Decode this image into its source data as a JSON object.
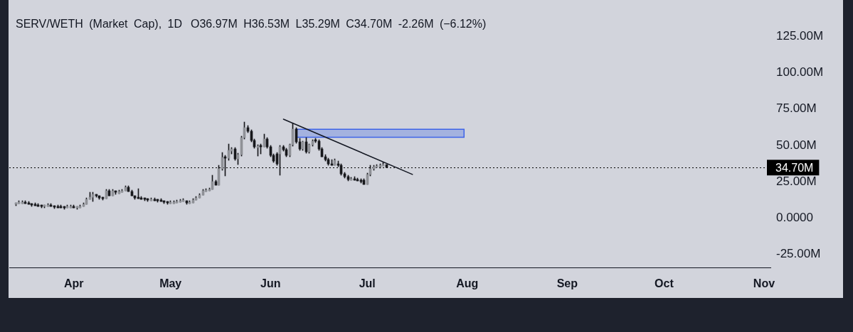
{
  "chart_data": {
    "type": "candlestick",
    "title": "SERV/WETH (Market Cap), 1D",
    "subtitle": "O36.97M H36.53M L35.29M C34.70M -2.26M (−6.12%)",
    "xlim": [
      "--03-12",
      "--11-03"
    ],
    "xticks": [
      {
        "value": "--04-01",
        "label": "Apr"
      },
      {
        "value": "--05-01",
        "label": "May"
      },
      {
        "value": "--06-01",
        "label": "Jun"
      },
      {
        "value": "--07-01",
        "label": "Jul"
      },
      {
        "value": "--08-01",
        "label": "Aug"
      },
      {
        "value": "--09-01",
        "label": "Sep"
      },
      {
        "value": "--10-01",
        "label": "Oct"
      },
      {
        "value": "--11-01",
        "label": "Nov"
      }
    ],
    "ylim": [
      -34,
      150
    ],
    "yticks": [
      {
        "value": -25,
        "label": "-25.00M"
      },
      {
        "value": 0,
        "label": "0.0000"
      },
      {
        "value": 25,
        "label": "25.00M"
      },
      {
        "value": 50,
        "label": "50.00M"
      },
      {
        "value": 75,
        "label": "75.00M"
      },
      {
        "value": 100,
        "label": "100.00M"
      },
      {
        "value": 125,
        "label": "125.00M"
      }
    ],
    "ref_lines": [
      {
        "axis": "y",
        "value": 34.7,
        "label": "34.70M",
        "color": "#000000",
        "line_style": "dotted"
      }
    ],
    "series": [
      {
        "color": "#17181c",
        "x": [
          "--03-14",
          "--03-15",
          "--03-16",
          "--03-17",
          "--03-18",
          "--03-19",
          "--03-20",
          "--03-21",
          "--03-22",
          "--03-23",
          "--03-24",
          "--03-25",
          "--03-26",
          "--03-27",
          "--03-28",
          "--03-29",
          "--03-30",
          "--03-31",
          "--04-01",
          "--04-02",
          "--04-03",
          "--04-04",
          "--04-05",
          "--04-06",
          "--04-07",
          "--04-08",
          "--04-09",
          "--04-10",
          "--04-11",
          "--04-12",
          "--04-13",
          "--04-14",
          "--04-15",
          "--04-16",
          "--04-17",
          "--04-18",
          "--04-19",
          "--04-20",
          "--04-21",
          "--04-22",
          "--04-23",
          "--04-24",
          "--04-25",
          "--04-26",
          "--04-27",
          "--04-28",
          "--04-29",
          "--04-30",
          "--05-01",
          "--05-02",
          "--05-03",
          "--05-04",
          "--05-05",
          "--05-06",
          "--05-07",
          "--05-08",
          "--05-09",
          "--05-10",
          "--05-11",
          "--05-12",
          "--05-13",
          "--05-14",
          "--05-15",
          "--05-16",
          "--05-17",
          "--05-18",
          "--05-19",
          "--05-20",
          "--05-21",
          "--05-22",
          "--05-23",
          "--05-24",
          "--05-25",
          "--05-26",
          "--05-27",
          "--05-28",
          "--05-29",
          "--05-30",
          "--05-31",
          "--06-01",
          "--06-02",
          "--06-03",
          "--06-04",
          "--06-05",
          "--06-06",
          "--06-07",
          "--06-08",
          "--06-09",
          "--06-10",
          "--06-11",
          "--06-12",
          "--06-13",
          "--06-14",
          "--06-15",
          "--06-16",
          "--06-17",
          "--06-18",
          "--06-19",
          "--06-20",
          "--06-21",
          "--06-22",
          "--06-23",
          "--06-24",
          "--06-25",
          "--06-26",
          "--06-27",
          "--06-28",
          "--06-29",
          "--06-30",
          "--07-01",
          "--07-02",
          "--07-03",
          "--07-04",
          "--07-05",
          "--07-06",
          "--07-07"
        ],
        "ohlc": [
          [
            9.5,
            10.5,
            8.5,
            10.5
          ],
          [
            10.0,
            12.0,
            10.0,
            11.0
          ],
          [
            10.0,
            12.0,
            10.0,
            11.0
          ],
          [
            11.0,
            12.0,
            10.0,
            10.0
          ],
          [
            10.5,
            11.5,
            9.5,
            9.5
          ],
          [
            10.0,
            10.0,
            8.0,
            9.0
          ],
          [
            9.5,
            10.5,
            8.5,
            8.5
          ],
          [
            9.0,
            10.0,
            8.0,
            8.0
          ],
          [
            9.0,
            9.0,
            7.0,
            8.0
          ],
          [
            8.0,
            9.0,
            7.0,
            9.0
          ],
          [
            8.0,
            10.0,
            8.0,
            9.0
          ],
          [
            9.0,
            10.0,
            8.0,
            8.0
          ],
          [
            8.5,
            8.5,
            6.5,
            7.5
          ],
          [
            8.0,
            9.0,
            7.0,
            7.0
          ],
          [
            8.0,
            9.0,
            7.0,
            7.0
          ],
          [
            8.0,
            8.0,
            6.0,
            7.0
          ],
          [
            7.0,
            9.0,
            7.0,
            8.0
          ],
          [
            7.0,
            9.0,
            7.0,
            8.0
          ],
          [
            8.0,
            9.0,
            7.0,
            7.0
          ],
          [
            7.0,
            8.0,
            6.0,
            8.0
          ],
          [
            7.0,
            9.0,
            7.0,
            8.0
          ],
          [
            8.0,
            10.5,
            8.0,
            9.5
          ],
          [
            9.5,
            14.0,
            9.5,
            13.0
          ],
          [
            13.0,
            17.5,
            13.0,
            14.5
          ],
          [
            14.5,
            17.5,
            11.5,
            16.5
          ],
          [
            16.5,
            16.5,
            14.5,
            15.5
          ],
          [
            15.5,
            15.5,
            13.0,
            14.0
          ],
          [
            14.5,
            14.5,
            12.5,
            13.5
          ],
          [
            13.5,
            19.5,
            13.5,
            18.5
          ],
          [
            18.5,
            19.5,
            15.5,
            15.5
          ],
          [
            15.5,
            19.5,
            15.5,
            18.5
          ],
          [
            18.5,
            18.5,
            16.5,
            17.5
          ],
          [
            17.0,
            19.0,
            17.0,
            18.0
          ],
          [
            17.5,
            19.5,
            17.5,
            18.5
          ],
          [
            18.5,
            22.0,
            18.5,
            21.0
          ],
          [
            21.0,
            22.0,
            18.0,
            18.0
          ],
          [
            18.0,
            19.0,
            15.5,
            15.5
          ],
          [
            15.5,
            15.5,
            13.0,
            14.0
          ],
          [
            14.5,
            20.0,
            13.5,
            13.5
          ],
          [
            14.0,
            15.0,
            13.0,
            13.0
          ],
          [
            14.0,
            14.0,
            12.0,
            13.0
          ],
          [
            13.5,
            13.5,
            11.5,
            12.5
          ],
          [
            12.0,
            14.0,
            12.0,
            13.0
          ],
          [
            13.0,
            14.0,
            12.0,
            12.0
          ],
          [
            13.0,
            13.0,
            11.0,
            12.0
          ],
          [
            12.5,
            13.5,
            11.5,
            11.5
          ],
          [
            12.0,
            12.0,
            10.0,
            11.0
          ],
          [
            11.5,
            11.5,
            9.5,
            10.5
          ],
          [
            10.0,
            12.0,
            10.0,
            11.0
          ],
          [
            10.0,
            12.0,
            10.0,
            11.0
          ],
          [
            10.5,
            12.5,
            10.5,
            11.5
          ],
          [
            11.0,
            13.0,
            11.0,
            12.0
          ],
          [
            11.5,
            13.5,
            11.5,
            12.5
          ],
          [
            12.0,
            12.0,
            9.5,
            10.5
          ],
          [
            10.0,
            12.0,
            10.0,
            11.0
          ],
          [
            10.5,
            13.5,
            10.5,
            12.5
          ],
          [
            12.5,
            15.0,
            12.5,
            14.0
          ],
          [
            14.0,
            17.0,
            14.0,
            16.0
          ],
          [
            16.0,
            19.5,
            16.0,
            18.5
          ],
          [
            18.0,
            20.0,
            18.0,
            19.0
          ],
          [
            18.5,
            20.5,
            18.5,
            19.5
          ],
          [
            19.5,
            29.5,
            19.5,
            25.0
          ],
          [
            25.0,
            26.0,
            22.5,
            22.5
          ],
          [
            22.5,
            36.5,
            22.5,
            34.0
          ],
          [
            34.0,
            45.0,
            33.0,
            41.5
          ],
          [
            42.0,
            43.0,
            29.0,
            41.0
          ],
          [
            41.0,
            51.0,
            39.5,
            46.5
          ],
          [
            46.0,
            48.5,
            44.0,
            47.5
          ],
          [
            47.5,
            48.5,
            39.5,
            40.5
          ],
          [
            40.5,
            44.5,
            37.0,
            43.5
          ],
          [
            43.5,
            56.5,
            42.5,
            55.5
          ],
          [
            55.5,
            66.0,
            54.5,
            62.0
          ],
          [
            62.0,
            63.5,
            58.5,
            59.5
          ],
          [
            59.5,
            60.5,
            52.5,
            53.5
          ],
          [
            53.5,
            54.5,
            48.0,
            49.0
          ],
          [
            48.5,
            50.5,
            42.5,
            49.5
          ],
          [
            50.0,
            51.0,
            44.0,
            49.0
          ],
          [
            49.0,
            58.0,
            49.0,
            54.5
          ],
          [
            54.5,
            55.5,
            48.0,
            49.0
          ],
          [
            49.0,
            50.0,
            42.0,
            43.0
          ],
          [
            43.0,
            44.0,
            38.0,
            39.0
          ],
          [
            44.0,
            45.0,
            36.5,
            37.5
          ],
          [
            44.0,
            50.0,
            29.5,
            49.0
          ],
          [
            49.0,
            50.0,
            46.0,
            47.0
          ],
          [
            47.0,
            48.0,
            42.0,
            43.0
          ],
          [
            43.0,
            51.0,
            42.0,
            50.5
          ],
          [
            50.5,
            65.0,
            49.5,
            61.0
          ],
          [
            61.0,
            62.0,
            51.5,
            52.5
          ],
          [
            52.5,
            55.0,
            46.5,
            47.5
          ],
          [
            47.5,
            53.0,
            46.5,
            52.5
          ],
          [
            52.5,
            55.5,
            44.5,
            45.5
          ],
          [
            45.5,
            51.0,
            44.5,
            50.5
          ],
          [
            50.5,
            54.0,
            49.5,
            53.0
          ],
          [
            54.0,
            55.0,
            52.0,
            53.0
          ],
          [
            53.0,
            54.0,
            46.5,
            47.5
          ],
          [
            47.5,
            48.5,
            42.0,
            42.0
          ],
          [
            42.0,
            43.5,
            39.0,
            40.0
          ],
          [
            40.0,
            41.0,
            36.5,
            37.5
          ],
          [
            37.5,
            40.0,
            36.5,
            36.5
          ],
          [
            36.5,
            40.5,
            36.5,
            39.5
          ],
          [
            37.5,
            39.0,
            35.5,
            36.5
          ],
          [
            36.5,
            37.5,
            29.5,
            30.5
          ],
          [
            30.5,
            31.5,
            27.5,
            28.5
          ],
          [
            28.5,
            29.5,
            25.5,
            26.5
          ],
          [
            26.0,
            28.0,
            26.0,
            27.0
          ],
          [
            27.0,
            28.5,
            26.0,
            26.0
          ],
          [
            26.5,
            27.5,
            25.5,
            25.5
          ],
          [
            26.0,
            27.0,
            24.0,
            25.0
          ],
          [
            26.0,
            27.0,
            23.0,
            23.0
          ],
          [
            23.0,
            31.0,
            23.0,
            30.0
          ],
          [
            30.0,
            36.5,
            29.0,
            34.0
          ],
          [
            34.0,
            36.5,
            33.0,
            35.5
          ],
          [
            35.0,
            37.0,
            35.0,
            36.0
          ],
          [
            35.5,
            37.5,
            34.5,
            36.5
          ],
          [
            35.9,
            38.0,
            35.9,
            36.96
          ],
          [
            36.97,
            36.97,
            34.7,
            34.7
          ]
        ],
        "colors": [
          "#8f9197",
          "#8f9197",
          "#8f9197",
          "#17181c",
          "#17181c",
          "#17181c",
          "#17181c",
          "#17181c",
          "#17181c",
          "#8f9197",
          "#8f9197",
          "#17181c",
          "#17181c",
          "#17181c",
          "#17181c",
          "#17181c",
          "#8f9197",
          "#8f9197",
          "#17181c",
          "#8f9197",
          "#8f9197",
          "#8f9197",
          "#8f9197",
          "#8f9197",
          "#8f9197",
          "#17181c",
          "#17181c",
          "#17181c",
          "#8f9197",
          "#17181c",
          "#8f9197",
          "#17181c",
          "#8f9197",
          "#8f9197",
          "#8f9197",
          "#17181c",
          "#17181c",
          "#17181c",
          "#17181c",
          "#17181c",
          "#17181c",
          "#17181c",
          "#8f9197",
          "#17181c",
          "#17181c",
          "#17181c",
          "#17181c",
          "#17181c",
          "#8f9197",
          "#8f9197",
          "#8f9197",
          "#8f9197",
          "#8f9197",
          "#17181c",
          "#8f9197",
          "#8f9197",
          "#8f9197",
          "#8f9197",
          "#8f9197",
          "#8f9197",
          "#8f9197",
          "#8f9197",
          "#17181c",
          "#8f9197",
          "#8f9197",
          "#17181c",
          "#8f9197",
          "#8f9197",
          "#17181c",
          "#8f9197",
          "#8f9197",
          "#8f9197",
          "#17181c",
          "#17181c",
          "#17181c",
          "#8f9197",
          "#17181c",
          "#8f9197",
          "#17181c",
          "#17181c",
          "#17181c",
          "#17181c",
          "#8f9197",
          "#17181c",
          "#17181c",
          "#8f9197",
          "#8f9197",
          "#17181c",
          "#17181c",
          "#8f9197",
          "#17181c",
          "#8f9197",
          "#8f9197",
          "#17181c",
          "#17181c",
          "#17181c",
          "#17181c",
          "#17181c",
          "#17181c",
          "#8f9197",
          "#17181c",
          "#17181c",
          "#17181c",
          "#17181c",
          "#8f9197",
          "#17181c",
          "#17181c",
          "#17181c",
          "#17181c",
          "#8f9197",
          "#8f9197",
          "#8f9197",
          "#8f9197",
          "#8f9197",
          "#8f9197",
          "#17181c"
        ]
      },
      {
        "type": "line",
        "x": [
          "--06-05",
          "--07-15"
        ],
        "values": [
          68,
          30
        ],
        "color": "#131722"
      },
      {
        "type": "area",
        "x": [
          "--06-09",
          "--07-31"
        ],
        "values": [
          null,
          null
        ],
        "lower": [
          55.6,
          55.6
        ],
        "upper": [
          61,
          61
        ],
        "color": "#3d63e8"
      }
    ]
  }
}
